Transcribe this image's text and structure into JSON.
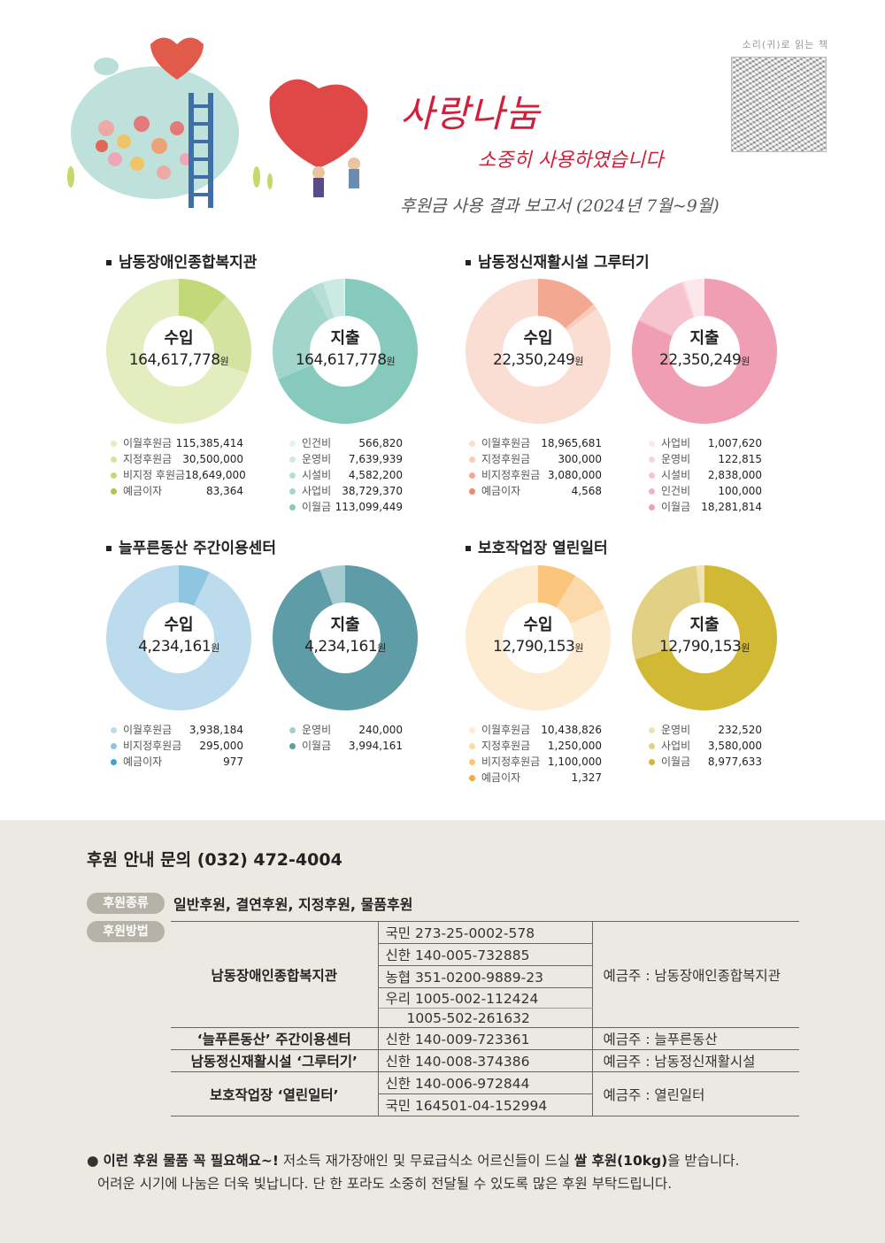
{
  "header": {
    "title": "사랑나눔",
    "subtitle": "소중히 사용하였습니다",
    "report": "후원금 사용 결과 보고서 (2024년 7월~9월)",
    "qr_label": "소리(귀)로 읽는 책"
  },
  "chart_data": [
    {
      "type": "pie",
      "section": "남동장애인종합복지관",
      "label": "수입",
      "total": "164,617,778",
      "unit": "원",
      "slices": [
        {
          "name": "이월후원금",
          "value": 115385414,
          "display": "115,385,414",
          "color": "#e3edbf"
        },
        {
          "name": "지정후원금",
          "value": 30500000,
          "display": "30,500,000",
          "color": "#d4e4a0"
        },
        {
          "name": "비지정 후원금",
          "value": 18649000,
          "display": "18,649,000",
          "color": "#c2d97a"
        },
        {
          "name": "예금이자",
          "value": 83364,
          "display": "83,364",
          "color": "#a8c84e"
        }
      ]
    },
    {
      "type": "pie",
      "section": "남동장애인종합복지관",
      "label": "지출",
      "total": "164,617,778",
      "unit": "원",
      "slices": [
        {
          "name": "인건비",
          "value": 566820,
          "display": "566,820",
          "color": "#e2f2ef"
        },
        {
          "name": "운영비",
          "value": 7639939,
          "display": "7,639,939",
          "color": "#cde9e4"
        },
        {
          "name": "시설비",
          "value": 4582200,
          "display": "4,582,200",
          "color": "#b6ded6"
        },
        {
          "name": "사업비",
          "value": 38729370,
          "display": "38,729,370",
          "color": "#a2d6cc"
        },
        {
          "name": "이월금",
          "value": 113099449,
          "display": "113,099,449",
          "color": "#86cabd"
        }
      ]
    },
    {
      "type": "pie",
      "section": "남동정신재활시설 그루터기",
      "label": "수입",
      "total": "22,350,249",
      "unit": "원",
      "slices": [
        {
          "name": "이월후원금",
          "value": 18965681,
          "display": "18,965,681",
          "color": "#fbded3"
        },
        {
          "name": "지정후원금",
          "value": 300000,
          "display": "300,000",
          "color": "#f8cbbc"
        },
        {
          "name": "비지정후원금",
          "value": 3080000,
          "display": "3,080,000",
          "color": "#f3a891"
        },
        {
          "name": "예금이자",
          "value": 4568,
          "display": "4,568",
          "color": "#ec8a6f"
        }
      ]
    },
    {
      "type": "pie",
      "section": "남동정신재활시설 그루터기",
      "label": "지출",
      "total": "22,350,249",
      "unit": "원",
      "slices": [
        {
          "name": "사업비",
          "value": 1007620,
          "display": "1,007,620",
          "color": "#fce7ec"
        },
        {
          "name": "운영비",
          "value": 122815,
          "display": "122,815",
          "color": "#f9d4dd"
        },
        {
          "name": "시설비",
          "value": 2838000,
          "display": "2,838,000",
          "color": "#f6c3cf"
        },
        {
          "name": "인건비",
          "value": 100000,
          "display": "100,000",
          "color": "#f3b2c2"
        },
        {
          "name": "이월금",
          "value": 18281814,
          "display": "18,281,814",
          "color": "#f09eb4"
        }
      ]
    },
    {
      "type": "pie",
      "section": "늘푸른동산 주간이용센터",
      "label": "수입",
      "total": "4,234,161",
      "unit": "원",
      "slices": [
        {
          "name": "이월후원금",
          "value": 3938184,
          "display": "3,938,184",
          "color": "#bcdcee"
        },
        {
          "name": "비지정후원금",
          "value": 295000,
          "display": "295,000",
          "color": "#8ec6e2"
        },
        {
          "name": "예금이자",
          "value": 977,
          "display": "977",
          "color": "#3ba4d5"
        }
      ]
    },
    {
      "type": "pie",
      "section": "늘푸른동산 주간이용센터",
      "label": "지출",
      "total": "4,234,161",
      "unit": "원",
      "slices": [
        {
          "name": "운영비",
          "value": 240000,
          "display": "240,000",
          "color": "#a6cbd1"
        },
        {
          "name": "이월금",
          "value": 3994161,
          "display": "3,994,161",
          "color": "#5e9da8"
        }
      ]
    },
    {
      "type": "pie",
      "section": "보호작업장 열린일터",
      "label": "수입",
      "total": "12,790,153",
      "unit": "원",
      "slices": [
        {
          "name": "이월후원금",
          "value": 10438826,
          "display": "10,438,826",
          "color": "#fdebd2"
        },
        {
          "name": "지정후원금",
          "value": 1250000,
          "display": "1,250,000",
          "color": "#fcd9a8"
        },
        {
          "name": "비지정후원금",
          "value": 1100000,
          "display": "1,100,000",
          "color": "#fbc57c"
        },
        {
          "name": "예금이자",
          "value": 1327,
          "display": "1,327",
          "color": "#f6a93b"
        }
      ]
    },
    {
      "type": "pie",
      "section": "보호작업장 열린일터",
      "label": "지출",
      "total": "12,790,153",
      "unit": "원",
      "slices": [
        {
          "name": "운영비",
          "value": 232520,
          "display": "232,520",
          "color": "#ede3b5"
        },
        {
          "name": "사업비",
          "value": 3580000,
          "display": "3,580,000",
          "color": "#e2d184"
        },
        {
          "name": "이월금",
          "value": 8977633,
          "display": "8,977,633",
          "color": "#d2b935"
        }
      ]
    }
  ],
  "footer": {
    "contact": "후원 안내 문의 (032) 472-4004",
    "type_pill": "후원종류",
    "types": "일반후원, 결연후원, 지정후원, 물품후원",
    "method_pill": "후원방법",
    "banks": [
      {
        "org": "남동장애인종합복지관",
        "accounts": [
          "국민 273-25-0002-578",
          "신한 140-005-732885",
          "농협 351-0200-9889-23",
          "우리 1005-002-112424",
          "1005-502-261632"
        ],
        "holder": "예금주 : 남동장애인종합복지관"
      },
      {
        "org": "‘늘푸른동산’ 주간이용센터",
        "accounts": [
          "신한 140-009-723361"
        ],
        "holder": "예금주 : 늘푸른동산"
      },
      {
        "org": "남동정신재활시설 ‘그루터기’",
        "accounts": [
          "신한 140-008-374386"
        ],
        "holder": "예금주 : 남동정신재활시설"
      },
      {
        "org": "보호작업장 ‘열린일터’",
        "accounts": [
          "신한 140-006-972844",
          "국민 164501-04-152994"
        ],
        "holder": "예금주 : 열린일터"
      }
    ],
    "note_bold": "이런 후원 물품 꼭 필요해요~!",
    "note_text1": " 저소득 재가장애인 및 무료급식소 어르신들이 드실 ",
    "note_bold2": "쌀 후원(10kg)",
    "note_text2": "을 받습니다.",
    "note_line2": "어려운 시기에 나눔은 더욱 빛납니다. 단 한 포라도 소중히 전달될 수 있도록 많은 후원 부탁드립니다."
  }
}
